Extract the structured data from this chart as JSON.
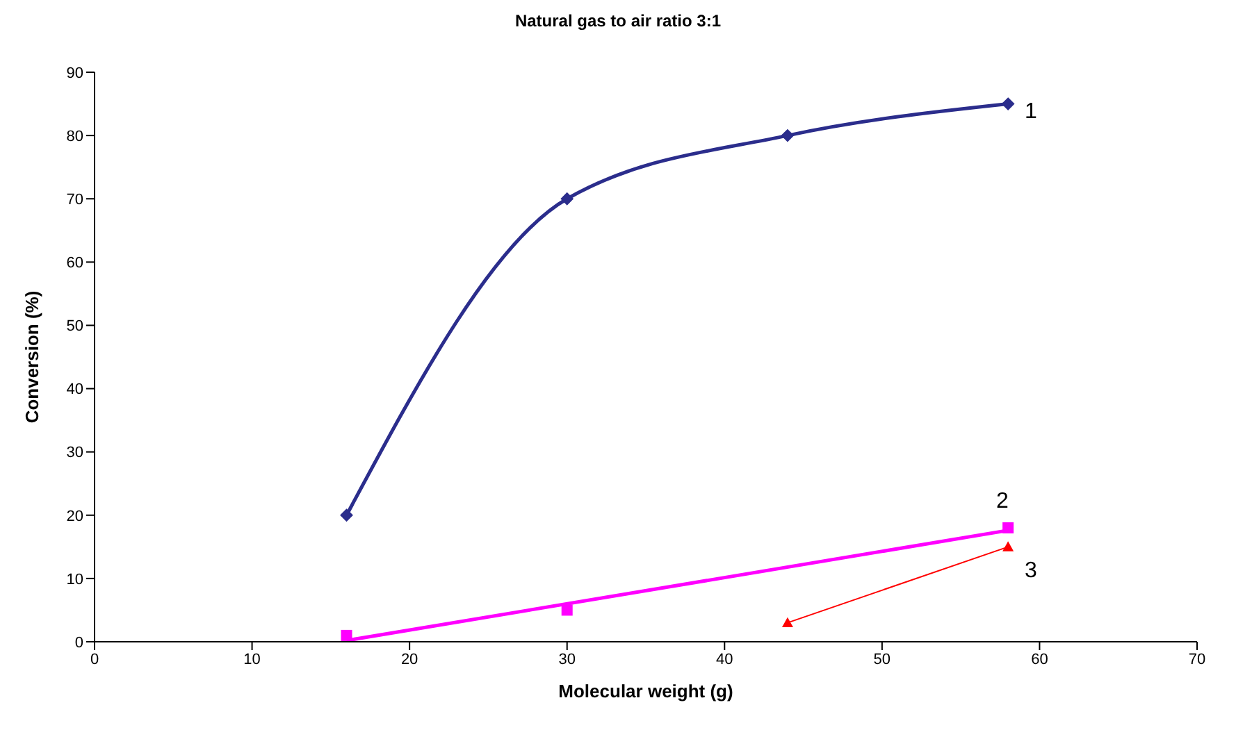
{
  "chart_data": {
    "type": "line",
    "title": "Natural gas to air ratio 3:1",
    "xlabel": "Molecular weight (g)",
    "ylabel": "Conversion (%)",
    "xlim": [
      0,
      70
    ],
    "xticks": [
      0,
      10,
      20,
      30,
      40,
      50,
      60,
      70
    ],
    "ylim": [
      0,
      90
    ],
    "yticks": [
      0,
      10,
      20,
      30,
      40,
      50,
      60,
      70,
      80,
      90
    ],
    "grid": false,
    "legend": false,
    "line_style": "solid",
    "series": [
      {
        "name": "1",
        "color": "#2b2d8c",
        "marker": "diamond",
        "x": [
          16,
          30,
          44,
          58
        ],
        "values": [
          20,
          70,
          80,
          85
        ]
      },
      {
        "name": "2",
        "type": "scatter",
        "color": "#ff00ff",
        "marker": "square",
        "x": [
          16,
          30,
          58
        ],
        "values": [
          1,
          5,
          18
        ]
      },
      {
        "color": "#ff00ff",
        "marker": "none",
        "x": [
          16,
          58
        ],
        "values": [
          0.2,
          17.6
        ]
      },
      {
        "name": "3",
        "color": "#ff0000",
        "marker": "triangle",
        "x": [
          44,
          58
        ],
        "values": [
          3,
          15
        ]
      }
    ]
  }
}
